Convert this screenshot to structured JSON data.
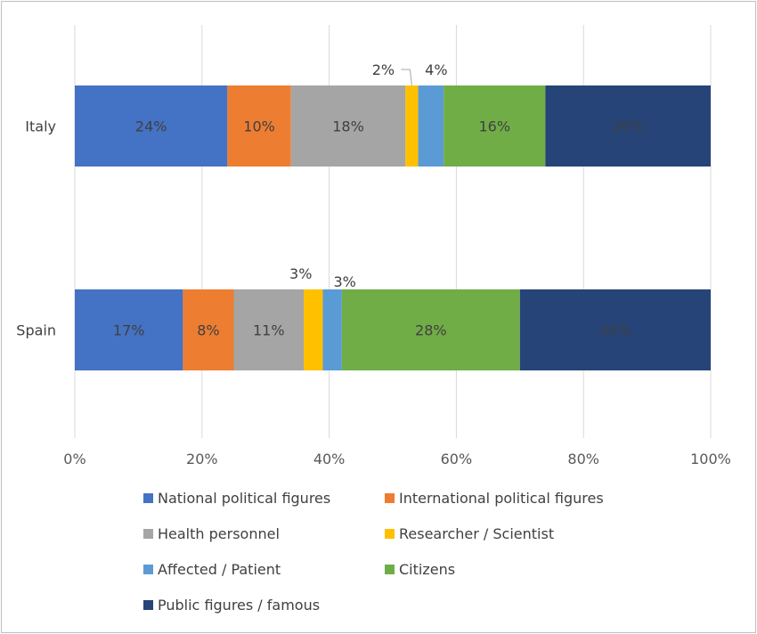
{
  "chart_data": {
    "type": "bar",
    "orientation": "horizontal",
    "stacked": "percent",
    "title": "",
    "xlabel": "",
    "ylabel": "",
    "xlim": [
      0,
      100
    ],
    "x_ticks": [
      "0%",
      "20%",
      "40%",
      "60%",
      "80%",
      "100%"
    ],
    "grid": "vertical",
    "legend_position": "bottom",
    "categories": [
      "Italy",
      "Spain"
    ],
    "series": [
      {
        "name": "National political figures",
        "color": "#4472C4",
        "values": [
          24,
          17
        ],
        "labels": [
          "24%",
          "17%"
        ]
      },
      {
        "name": "International political figures",
        "color": "#ED7D31",
        "values": [
          10,
          8
        ],
        "labels": [
          "10%",
          "8%"
        ]
      },
      {
        "name": "Health personnel",
        "color": "#A5A5A5",
        "values": [
          18,
          11
        ],
        "labels": [
          "18%",
          "11%"
        ]
      },
      {
        "name": "Researcher / Scientist",
        "color": "#FFC000",
        "values": [
          2,
          3
        ],
        "labels": [
          "2%",
          "3%"
        ]
      },
      {
        "name": "Affected / Patient",
        "color": "#5B9BD5",
        "values": [
          4,
          3
        ],
        "labels": [
          "4%",
          "3%"
        ]
      },
      {
        "name": "Citizens",
        "color": "#70AD47",
        "values": [
          16,
          28
        ],
        "labels": [
          "16%",
          "28%"
        ]
      },
      {
        "name": "Public figures / famous",
        "color": "#264478",
        "values": [
          26,
          30
        ],
        "labels": [
          "26%",
          "30%"
        ]
      }
    ]
  }
}
